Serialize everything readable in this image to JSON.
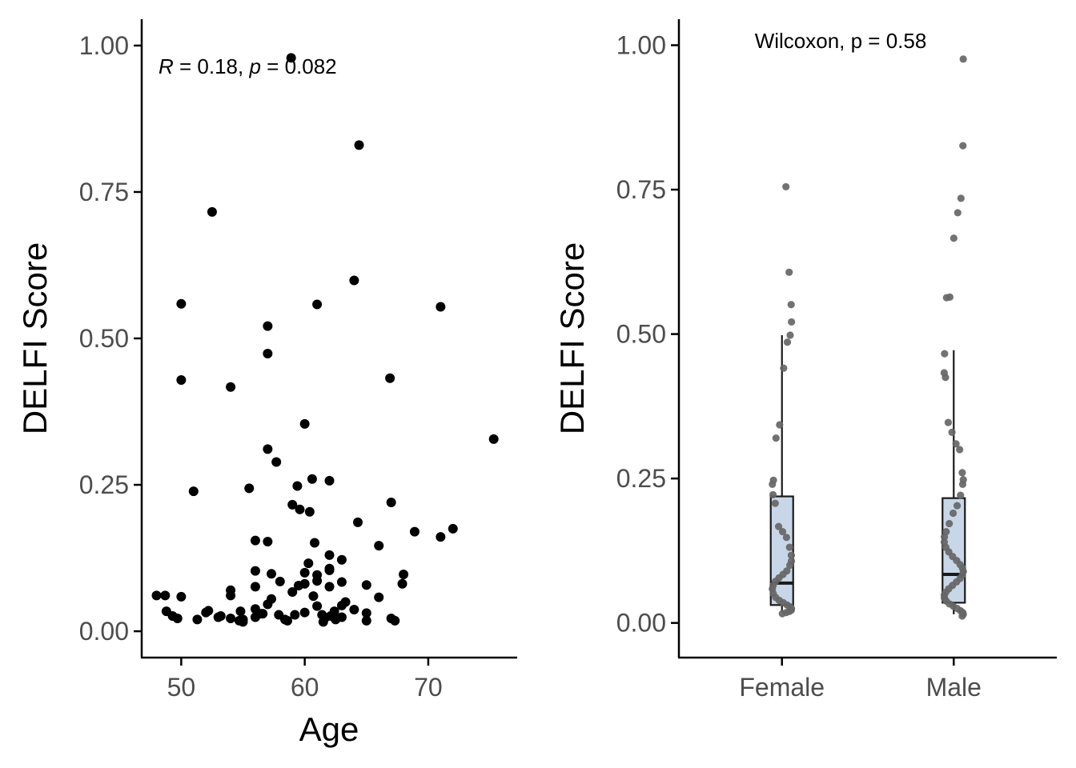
{
  "colors": {
    "point_scatter": "#000000",
    "point_jitter": "#666666",
    "box_fill": "#c8d7e8",
    "box_stroke": "#1a1a1a",
    "axis": "#000000",
    "tick_text": "#4d4d4d"
  },
  "chart_data": [
    {
      "type": "scatter",
      "xlabel": "Age",
      "ylabel": "DELFI Score",
      "annotation": {
        "r_symbol": "R",
        "r_text": " = 0.18, ",
        "p_symbol": "p",
        "p_text": " = 0.082"
      },
      "xlim": [
        46.8,
        77.2
      ],
      "ylim": [
        -0.045,
        1.045
      ],
      "x_ticks": [
        50,
        60,
        70
      ],
      "x_tick_labels": [
        "50",
        "60",
        "70"
      ],
      "y_ticks": [
        0,
        0.25,
        0.5,
        0.75,
        1.0
      ],
      "y_tick_labels": [
        "0.00",
        "0.25",
        "0.50",
        "0.75",
        "1.00"
      ],
      "grid": false,
      "points": [
        [
          48.0,
          0.061
        ],
        [
          48.7,
          0.061
        ],
        [
          48.8,
          0.034
        ],
        [
          49.3,
          0.026
        ],
        [
          49.7,
          0.022
        ],
        [
          50.0,
          0.059
        ],
        [
          50.0,
          0.559
        ],
        [
          50.0,
          0.429
        ],
        [
          51.0,
          0.239
        ],
        [
          51.3,
          0.02
        ],
        [
          52.0,
          0.032
        ],
        [
          52.2,
          0.035
        ],
        [
          52.5,
          0.716
        ],
        [
          53.0,
          0.024
        ],
        [
          53.2,
          0.026
        ],
        [
          54.0,
          0.061
        ],
        [
          54.0,
          0.07
        ],
        [
          54.0,
          0.022
        ],
        [
          54.0,
          0.417
        ],
        [
          54.7,
          0.018
        ],
        [
          54.8,
          0.034
        ],
        [
          55.0,
          0.016
        ],
        [
          55.0,
          0.02
        ],
        [
          55.5,
          0.244
        ],
        [
          56.0,
          0.155
        ],
        [
          56.0,
          0.103
        ],
        [
          56.0,
          0.076
        ],
        [
          56.0,
          0.038
        ],
        [
          56.0,
          0.024
        ],
        [
          56.4,
          0.03
        ],
        [
          56.6,
          0.03
        ],
        [
          57.0,
          0.153
        ],
        [
          57.0,
          0.311
        ],
        [
          57.0,
          0.474
        ],
        [
          57.0,
          0.521
        ],
        [
          57.0,
          0.046
        ],
        [
          57.3,
          0.098
        ],
        [
          57.3,
          0.055
        ],
        [
          57.7,
          0.289
        ],
        [
          57.9,
          0.028
        ],
        [
          58.0,
          0.085
        ],
        [
          58.4,
          0.02
        ],
        [
          58.6,
          0.018
        ],
        [
          58.9,
          0.979
        ],
        [
          59.0,
          0.216
        ],
        [
          59.0,
          0.067
        ],
        [
          59.2,
          0.028
        ],
        [
          59.4,
          0.248
        ],
        [
          59.5,
          0.078
        ],
        [
          59.6,
          0.208
        ],
        [
          60.0,
          0.354
        ],
        [
          60.0,
          0.081
        ],
        [
          60.0,
          0.1
        ],
        [
          60.0,
          0.032
        ],
        [
          60.3,
          0.116
        ],
        [
          60.4,
          0.204
        ],
        [
          60.6,
          0.26
        ],
        [
          60.7,
          0.06
        ],
        [
          60.8,
          0.151
        ],
        [
          61.0,
          0.558
        ],
        [
          61.0,
          0.043
        ],
        [
          61.0,
          0.096
        ],
        [
          61.0,
          0.086
        ],
        [
          61.4,
          0.028
        ],
        [
          61.5,
          0.016
        ],
        [
          61.6,
          0.022
        ],
        [
          62.0,
          0.076
        ],
        [
          62.0,
          0.107
        ],
        [
          62.0,
          0.257
        ],
        [
          62.0,
          0.13
        ],
        [
          62.0,
          0.104
        ],
        [
          62.1,
          0.026
        ],
        [
          62.4,
          0.034
        ],
        [
          62.5,
          0.02
        ],
        [
          63.0,
          0.122
        ],
        [
          63.0,
          0.084
        ],
        [
          63.0,
          0.044
        ],
        [
          63.0,
          0.024
        ],
        [
          63.3,
          0.05
        ],
        [
          64.0,
          0.599
        ],
        [
          64.0,
          0.037
        ],
        [
          64.3,
          0.186
        ],
        [
          64.4,
          0.83
        ],
        [
          65.0,
          0.079
        ],
        [
          65.0,
          0.031
        ],
        [
          65.0,
          0.018
        ],
        [
          66.0,
          0.058
        ],
        [
          66.0,
          0.146
        ],
        [
          66.9,
          0.432
        ],
        [
          67.0,
          0.22
        ],
        [
          67.0,
          0.022
        ],
        [
          67.3,
          0.018
        ],
        [
          67.9,
          0.081
        ],
        [
          68.0,
          0.097
        ],
        [
          68.9,
          0.17
        ],
        [
          71.0,
          0.554
        ],
        [
          71.0,
          0.161
        ],
        [
          72.0,
          0.175
        ],
        [
          75.3,
          0.328
        ]
      ]
    },
    {
      "type": "box",
      "ylabel": "DELFI Score",
      "annotation": "Wilcoxon, p = 0.58",
      "categories": [
        "Female",
        "Male"
      ],
      "ylim": [
        -0.06,
        1.045
      ],
      "y_ticks": [
        0,
        0.25,
        0.5,
        0.75,
        1.0
      ],
      "y_tick_labels": [
        "0.00",
        "0.25",
        "0.50",
        "0.75",
        "1.00"
      ],
      "grid": false,
      "boxes": [
        {
          "category": "Female",
          "lower": 0.019,
          "q1": 0.031,
          "median": 0.069,
          "q3": 0.219,
          "upper": 0.498
        },
        {
          "category": "Male",
          "lower": 0.015,
          "q1": 0.035,
          "median": 0.084,
          "q3": 0.216,
          "upper": 0.472
        }
      ],
      "points": [
        {
          "category": "Female",
          "values": [
            0.755,
            0.607,
            0.551,
            0.521,
            0.498,
            0.486,
            0.441,
            0.343,
            0.32,
            0.247,
            0.24,
            0.222,
            0.207,
            0.167,
            0.158,
            0.148,
            0.131,
            0.117,
            0.107,
            0.1,
            0.09,
            0.084,
            0.078,
            0.072,
            0.065,
            0.059,
            0.051,
            0.044,
            0.039,
            0.035,
            0.031,
            0.028,
            0.025,
            0.022,
            0.02,
            0.018,
            0.016
          ]
        },
        {
          "category": "Male",
          "values": [
            0.976,
            0.826,
            0.735,
            0.71,
            0.666,
            0.564,
            0.563,
            0.466,
            0.433,
            0.425,
            0.347,
            0.33,
            0.31,
            0.3,
            0.26,
            0.248,
            0.24,
            0.221,
            0.203,
            0.19,
            0.172,
            0.158,
            0.149,
            0.14,
            0.131,
            0.123,
            0.115,
            0.108,
            0.101,
            0.095,
            0.089,
            0.083,
            0.077,
            0.071,
            0.065,
            0.059,
            0.053,
            0.048,
            0.043,
            0.038,
            0.033,
            0.029,
            0.025,
            0.021,
            0.018,
            0.015,
            0.012
          ]
        }
      ]
    }
  ]
}
